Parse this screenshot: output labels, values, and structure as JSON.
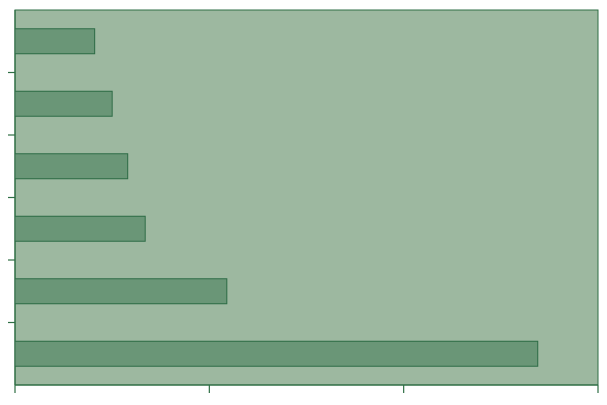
{
  "chart_data": {
    "type": "barh",
    "categories": [
      null,
      null,
      null,
      null,
      null,
      null
    ],
    "values": [
      0.41,
      0.5,
      0.58,
      0.67,
      1.09,
      2.69
    ],
    "color": "#6a9677",
    "edge_color": "#2d6b45",
    "background": "#9db8a0",
    "xlim": [
      0,
      3
    ],
    "xticks": [
      0,
      1,
      2,
      3
    ]
  }
}
